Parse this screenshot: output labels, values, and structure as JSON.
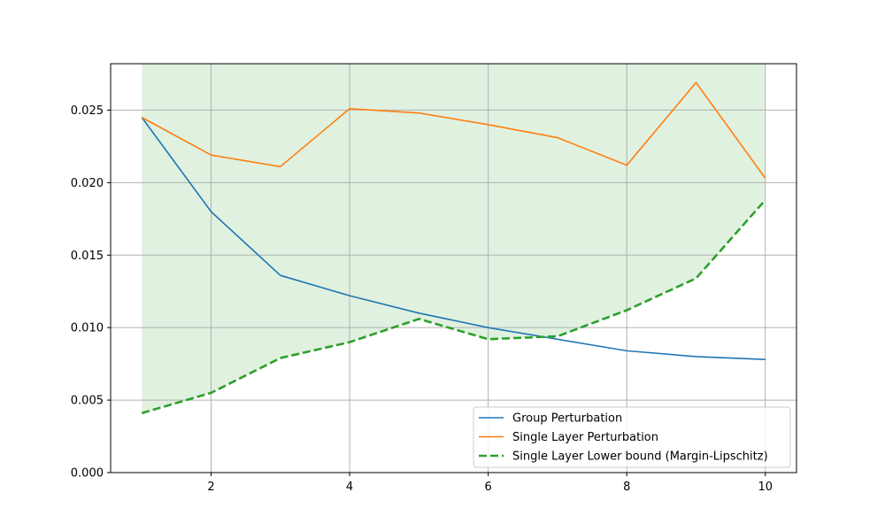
{
  "chart_data": {
    "type": "line",
    "x": [
      1,
      2,
      3,
      4,
      5,
      6,
      7,
      8,
      9,
      10
    ],
    "xlim": [
      0.55,
      10.45
    ],
    "ylim": [
      0,
      0.0282
    ],
    "x_ticks": [
      2,
      4,
      6,
      8,
      10
    ],
    "x_tick_labels": [
      "2",
      "4",
      "6",
      "8",
      "10"
    ],
    "y_ticks": [
      0,
      0.005,
      0.01,
      0.015,
      0.02,
      0.025
    ],
    "y_tick_labels": [
      "0.000",
      "0.005",
      "0.010",
      "0.015",
      "0.020",
      "0.025"
    ],
    "grid": true,
    "legend_position": "lower-right",
    "series": [
      {
        "name": "Group Perturbation",
        "color": "#1f77b4",
        "style": "solid",
        "values": [
          0.0245,
          0.018,
          0.0136,
          0.0122,
          0.011,
          0.01,
          0.0092,
          0.0084,
          0.008,
          0.0078
        ]
      },
      {
        "name": "Single Layer Perturbation",
        "color": "#ff7f0e",
        "style": "solid",
        "values": [
          0.0245,
          0.0219,
          0.0211,
          0.0251,
          0.0248,
          0.024,
          0.0231,
          0.0212,
          0.0269,
          0.0203
        ]
      },
      {
        "name": "Single Layer Lower bound (Margin-Lipschitz)",
        "color": "#2ca02c",
        "style": "dashed",
        "values": [
          0.0041,
          0.0055,
          0.0079,
          0.009,
          0.0106,
          0.0092,
          0.0094,
          0.0112,
          0.0134,
          0.0188
        ]
      }
    ],
    "shaded_region": {
      "color": "#2ca02c",
      "opacity": 0.15,
      "lower": [
        0.0041,
        0.0055,
        0.0079,
        0.009,
        0.0106,
        0.0092,
        0.0094,
        0.0112,
        0.0134,
        0.0188
      ],
      "upper_to_axis_top": true
    }
  }
}
